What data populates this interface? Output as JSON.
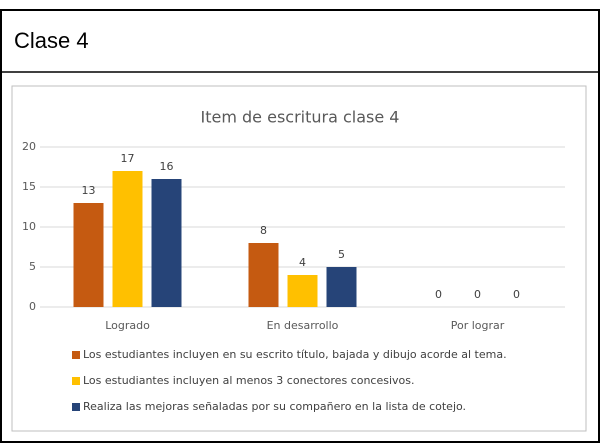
{
  "header": "Clase 4",
  "chart_data": {
    "type": "bar",
    "title": "Item de escritura clase 4",
    "categories": [
      "Logrado",
      "En desarrollo",
      "Por lograr"
    ],
    "series": [
      {
        "name": "Los estudiantes incluyen en su escrito título, bajada y dibujo acorde al tema.",
        "color": "#c55a11",
        "values": [
          13,
          8,
          0
        ]
      },
      {
        "name": "Los estudiantes incluyen al menos 3 conectores concesivos.",
        "color": "#ffc000",
        "values": [
          17,
          4,
          0
        ]
      },
      {
        "name": "Realiza las mejoras  señaladas por su  compañero en la lista de  cotejo.",
        "color": "#264478",
        "values": [
          16,
          5,
          0
        ]
      }
    ],
    "ylim": [
      0,
      20
    ],
    "yticks": [
      0,
      5,
      10,
      15,
      20
    ],
    "grid": true,
    "legend": "bottom"
  }
}
